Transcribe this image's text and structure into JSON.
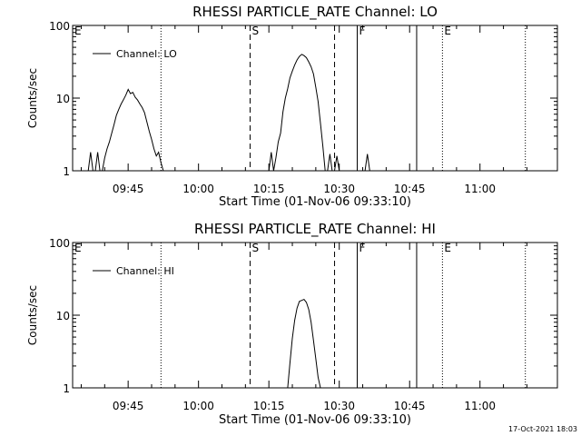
{
  "footer": "17-Oct-2021 18:03",
  "chart_data": [
    {
      "type": "line",
      "title": "RHESSI PARTICLE_RATE Channel: LO",
      "xlabel": "Start Time (01-Nov-06 09:33:10)",
      "ylabel": "Counts/sec",
      "y_scale": "log",
      "ylim": [
        1,
        100
      ],
      "xlim": [
        "09:33:10",
        "11:16:30"
      ],
      "x_ticks": [
        "09:45",
        "10:00",
        "10:15",
        "10:30",
        "10:45",
        "11:00"
      ],
      "y_ticks": [
        "1",
        "10",
        "100"
      ],
      "legend": {
        "position": "top-left",
        "entries": [
          "Channel: LO"
        ]
      },
      "markers": [
        {
          "time": "09:33:10",
          "label": "E",
          "style": "none"
        },
        {
          "time": "09:52:00",
          "label": "",
          "style": "dotted"
        },
        {
          "time": "10:11:00",
          "label": "S",
          "style": "dashed"
        },
        {
          "time": "10:29:00",
          "label": "",
          "style": "dashed"
        },
        {
          "time": "10:33:50",
          "label": "F",
          "style": "solid"
        },
        {
          "time": "10:46:30",
          "label": "",
          "style": "solid"
        },
        {
          "time": "10:52:00",
          "label": "E",
          "style": "dotted"
        },
        {
          "time": "11:09:40",
          "label": "",
          "style": "dotted"
        }
      ],
      "series": [
        {
          "name": "Channel: LO",
          "x": [
            "09:36:30",
            "09:37:00",
            "09:37:30",
            "09:38:00",
            "09:38:30",
            "09:39:00",
            "09:39:30",
            "09:40:00",
            "09:40:30",
            "09:41:00",
            "09:41:30",
            "09:42:00",
            "09:42:30",
            "09:43:00",
            "09:43:30",
            "09:44:00",
            "09:44:30",
            "09:45:00",
            "09:45:30",
            "09:46:00",
            "09:46:30",
            "09:47:00",
            "09:47:30",
            "09:48:00",
            "09:48:30",
            "09:49:00",
            "09:49:30",
            "09:50:00",
            "09:50:30",
            "09:51:00",
            "09:51:30",
            "09:52:00",
            "09:52:30"
          ],
          "y": [
            1,
            1.8,
            1,
            1,
            1.8,
            1,
            1,
            1.5,
            2.0,
            2.5,
            3.3,
            4.3,
            5.8,
            7.0,
            8.3,
            9.5,
            11.0,
            13.2,
            11.5,
            12.0,
            10.3,
            9.4,
            8.3,
            7.4,
            6.3,
            4.7,
            3.5,
            2.7,
            2.0,
            1.6,
            1.8,
            1.3,
            1
          ]
        },
        {
          "name": "Channel: LO",
          "x": [
            "10:15:00",
            "10:15:30",
            "10:16:00",
            "10:16:30",
            "10:17:00",
            "10:17:30",
            "10:18:00",
            "10:18:30",
            "10:19:00",
            "10:19:30",
            "10:20:00",
            "10:20:30",
            "10:21:00",
            "10:21:30",
            "10:22:00",
            "10:22:30",
            "10:23:00",
            "10:23:30",
            "10:24:00",
            "10:24:30",
            "10:25:00",
            "10:25:30",
            "10:26:00",
            "10:26:30",
            "10:27:00",
            "10:27:30",
            "10:28:00",
            "10:28:30",
            "10:29:00",
            "10:29:30",
            "10:30:00"
          ],
          "y": [
            1,
            1.8,
            1,
            1.5,
            2.5,
            3.3,
            6.5,
            10.0,
            13.5,
            19.0,
            23.5,
            28.5,
            33.5,
            37.5,
            40.0,
            38.5,
            36.0,
            31.5,
            27.0,
            21.5,
            14.0,
            9.0,
            4.5,
            2.2,
            1,
            1,
            1.7,
            1,
            1,
            1.6,
            1
          ]
        },
        {
          "name": "Channel: LO",
          "x": [
            "10:35:30",
            "10:36:00",
            "10:36:30"
          ],
          "y": [
            1,
            1.7,
            1
          ]
        }
      ]
    },
    {
      "type": "line",
      "title": "RHESSI PARTICLE_RATE Channel: HI",
      "xlabel": "Start Time (01-Nov-06 09:33:10)",
      "ylabel": "Counts/sec",
      "y_scale": "log",
      "ylim": [
        1,
        100
      ],
      "xlim": [
        "09:33:10",
        "11:16:30"
      ],
      "x_ticks": [
        "09:45",
        "10:00",
        "10:15",
        "10:30",
        "10:45",
        "11:00"
      ],
      "y_ticks": [
        "1",
        "10",
        "100"
      ],
      "legend": {
        "position": "top-left",
        "entries": [
          "Channel: HI"
        ]
      },
      "markers": [
        {
          "time": "09:33:10",
          "label": "E",
          "style": "none"
        },
        {
          "time": "09:52:00",
          "label": "",
          "style": "dotted"
        },
        {
          "time": "10:11:00",
          "label": "S",
          "style": "dashed"
        },
        {
          "time": "10:29:00",
          "label": "",
          "style": "dashed"
        },
        {
          "time": "10:33:50",
          "label": "F",
          "style": "solid"
        },
        {
          "time": "10:46:30",
          "label": "",
          "style": "solid"
        },
        {
          "time": "10:52:00",
          "label": "E",
          "style": "dotted"
        },
        {
          "time": "11:09:40",
          "label": "",
          "style": "dotted"
        }
      ],
      "series": [
        {
          "name": "Channel: HI",
          "x": [
            "10:19:00",
            "10:19:30",
            "10:20:00",
            "10:20:30",
            "10:21:00",
            "10:21:30",
            "10:22:00",
            "10:22:30",
            "10:23:00",
            "10:23:30",
            "10:24:00",
            "10:24:30",
            "10:25:00",
            "10:25:30",
            "10:26:00"
          ],
          "y": [
            1,
            2.2,
            4.8,
            8.5,
            12.5,
            15.5,
            16.0,
            16.5,
            15.0,
            12.0,
            8.0,
            4.5,
            2.5,
            1.4,
            1
          ]
        }
      ]
    }
  ]
}
